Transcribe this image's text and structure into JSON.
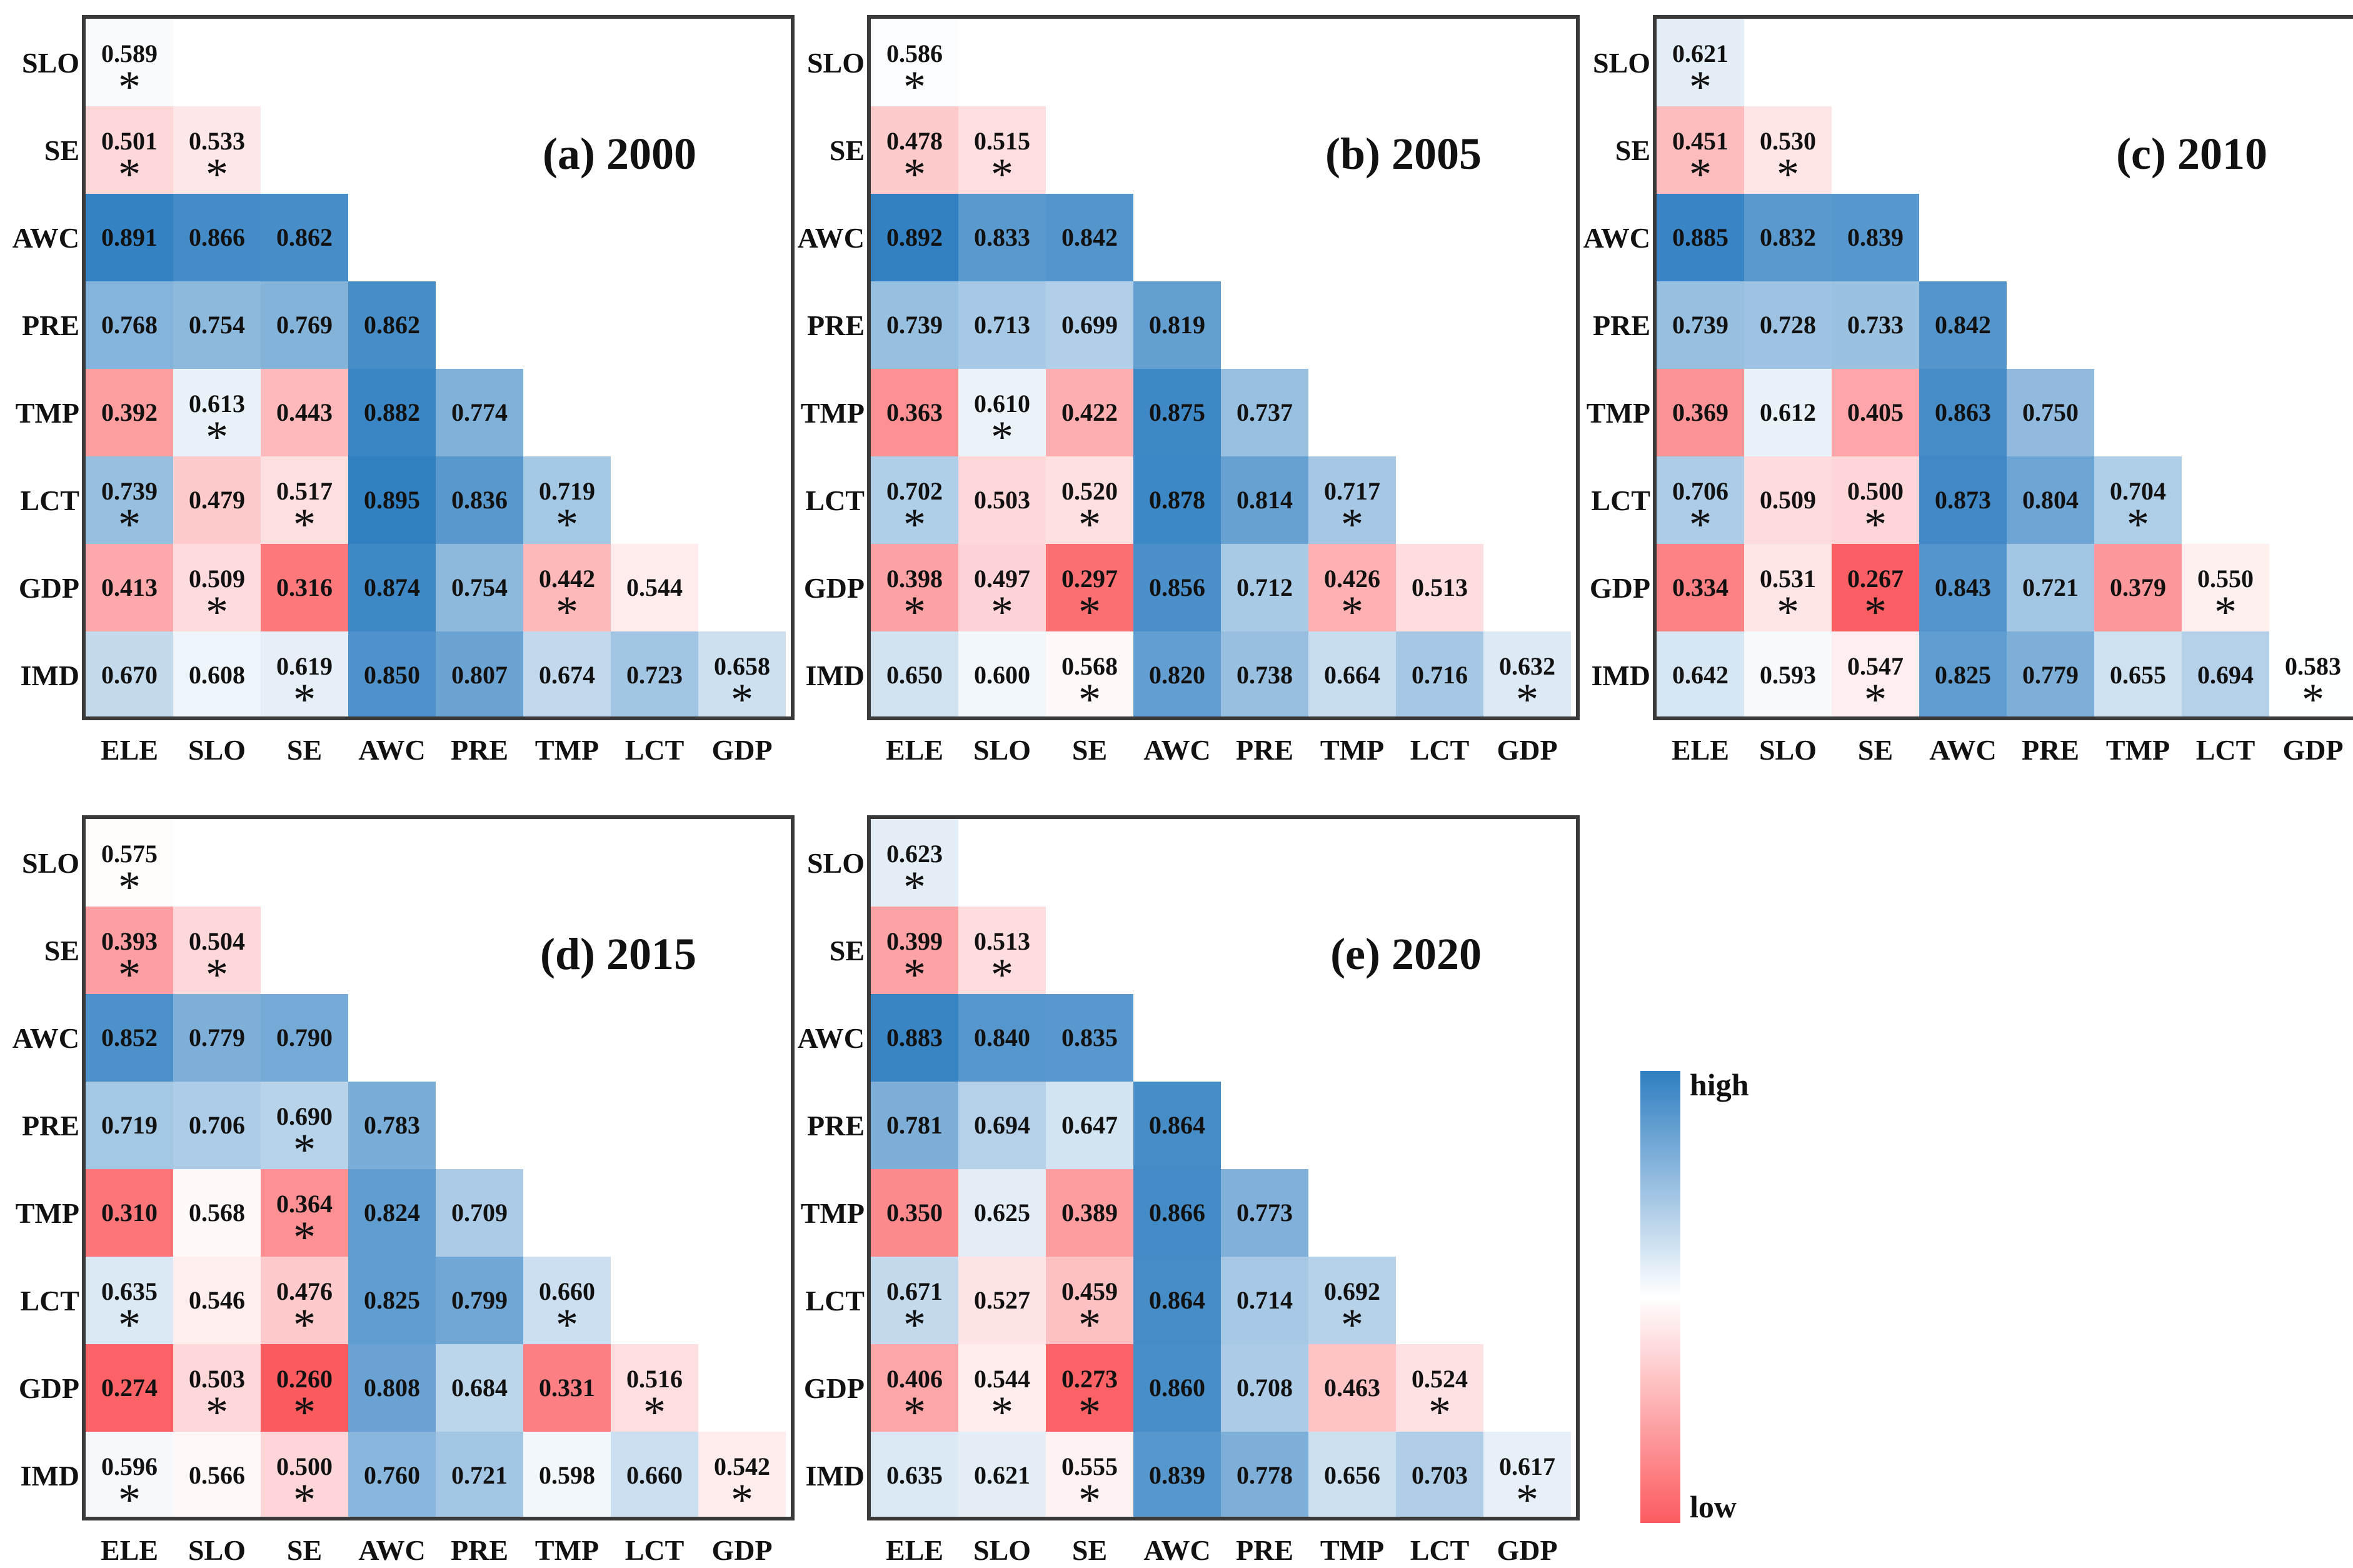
{
  "chart_data": [
    {
      "type": "heatmap",
      "title": "(a) 2000",
      "rows": [
        "SLO",
        "SE",
        "AWC",
        "PRE",
        "TMP",
        "LCT",
        "GDP",
        "IMD"
      ],
      "cols": [
        "ELE",
        "SLO",
        "SE",
        "AWC",
        "PRE",
        "TMP",
        "LCT",
        "GDP"
      ],
      "values": [
        [
          "0.589"
        ],
        [
          "0.501",
          "0.533"
        ],
        [
          "0.891",
          "0.866",
          "0.862"
        ],
        [
          "0.768",
          "0.754",
          "0.769",
          "0.862"
        ],
        [
          "0.392",
          "0.613",
          "0.443",
          "0.882",
          "0.774"
        ],
        [
          "0.739",
          "0.479",
          "0.517",
          "0.895",
          "0.836",
          "0.719"
        ],
        [
          "0.413",
          "0.509",
          "0.316",
          "0.874",
          "0.754",
          "0.442",
          "0.544"
        ],
        [
          "0.670",
          "0.608",
          "0.619",
          "0.850",
          "0.807",
          "0.674",
          "0.723",
          "0.658"
        ]
      ],
      "significant": [
        [
          1
        ],
        [
          1,
          1
        ],
        [
          0,
          0,
          0
        ],
        [
          0,
          0,
          0,
          0
        ],
        [
          0,
          1,
          0,
          0,
          0
        ],
        [
          1,
          0,
          1,
          0,
          0,
          1
        ],
        [
          0,
          1,
          0,
          0,
          0,
          1,
          0
        ],
        [
          0,
          0,
          1,
          0,
          0,
          0,
          0,
          1
        ]
      ]
    },
    {
      "type": "heatmap",
      "title": "(b) 2005",
      "rows": [
        "SLO",
        "SE",
        "AWC",
        "PRE",
        "TMP",
        "LCT",
        "GDP",
        "IMD"
      ],
      "cols": [
        "ELE",
        "SLO",
        "SE",
        "AWC",
        "PRE",
        "TMP",
        "LCT",
        "GDP"
      ],
      "values": [
        [
          "0.586"
        ],
        [
          "0.478",
          "0.515"
        ],
        [
          "0.892",
          "0.833",
          "0.842"
        ],
        [
          "0.739",
          "0.713",
          "0.699",
          "0.819"
        ],
        [
          "0.363",
          "0.610",
          "0.422",
          "0.875",
          "0.737"
        ],
        [
          "0.702",
          "0.503",
          "0.520",
          "0.878",
          "0.814",
          "0.717"
        ],
        [
          "0.398",
          "0.497",
          "0.297",
          "0.856",
          "0.712",
          "0.426",
          "0.513"
        ],
        [
          "0.650",
          "0.600",
          "0.568",
          "0.820",
          "0.738",
          "0.664",
          "0.716",
          "0.632"
        ]
      ],
      "significant": [
        [
          1
        ],
        [
          1,
          1
        ],
        [
          0,
          0,
          0
        ],
        [
          0,
          0,
          0,
          0
        ],
        [
          0,
          1,
          0,
          0,
          0
        ],
        [
          1,
          0,
          1,
          0,
          0,
          1
        ],
        [
          1,
          1,
          1,
          0,
          0,
          1,
          0
        ],
        [
          0,
          0,
          1,
          0,
          0,
          0,
          0,
          1
        ]
      ]
    },
    {
      "type": "heatmap",
      "title": "(c) 2010",
      "rows": [
        "SLO",
        "SE",
        "AWC",
        "PRE",
        "TMP",
        "LCT",
        "GDP",
        "IMD"
      ],
      "cols": [
        "ELE",
        "SLO",
        "SE",
        "AWC",
        "PRE",
        "TMP",
        "LCT",
        "GDP"
      ],
      "values": [
        [
          "0.621"
        ],
        [
          "0.451",
          "0.530"
        ],
        [
          "0.885",
          "0.832",
          "0.839"
        ],
        [
          "0.739",
          "0.728",
          "0.733",
          "0.842"
        ],
        [
          "0.369",
          "0.612",
          "0.405",
          "0.863",
          "0.750"
        ],
        [
          "0.706",
          "0.509",
          "0.500",
          "0.873",
          "0.804",
          "0.704"
        ],
        [
          "0.334",
          "0.531",
          "0.267",
          "0.843",
          "0.721",
          "0.379",
          "0.550"
        ],
        [
          "0.642",
          "0.593",
          "0.547",
          "0.825",
          "0.779",
          "0.655",
          "0.694",
          "0.583"
        ]
      ],
      "significant": [
        [
          1
        ],
        [
          1,
          1
        ],
        [
          0,
          0,
          0
        ],
        [
          0,
          0,
          0,
          0
        ],
        [
          0,
          0,
          0,
          0,
          0
        ],
        [
          1,
          0,
          1,
          0,
          0,
          1
        ],
        [
          0,
          1,
          1,
          0,
          0,
          0,
          1
        ],
        [
          0,
          0,
          1,
          0,
          0,
          0,
          0,
          1
        ]
      ]
    },
    {
      "type": "heatmap",
      "title": "(d) 2015",
      "rows": [
        "SLO",
        "SE",
        "AWC",
        "PRE",
        "TMP",
        "LCT",
        "GDP",
        "IMD"
      ],
      "cols": [
        "ELE",
        "SLO",
        "SE",
        "AWC",
        "PRE",
        "TMP",
        "LCT",
        "GDP"
      ],
      "values": [
        [
          "0.575"
        ],
        [
          "0.393",
          "0.504"
        ],
        [
          "0.852",
          "0.779",
          "0.790"
        ],
        [
          "0.719",
          "0.706",
          "0.690",
          "0.783"
        ],
        [
          "0.310",
          "0.568",
          "0.364",
          "0.824",
          "0.709"
        ],
        [
          "0.635",
          "0.546",
          "0.476",
          "0.825",
          "0.799",
          "0.660"
        ],
        [
          "0.274",
          "0.503",
          "0.260",
          "0.808",
          "0.684",
          "0.331",
          "0.516"
        ],
        [
          "0.596",
          "0.566",
          "0.500",
          "0.760",
          "0.721",
          "0.598",
          "0.660",
          "0.542"
        ]
      ],
      "significant": [
        [
          1
        ],
        [
          1,
          1
        ],
        [
          0,
          0,
          0
        ],
        [
          0,
          0,
          1,
          0
        ],
        [
          0,
          0,
          1,
          0,
          0
        ],
        [
          1,
          0,
          1,
          0,
          0,
          1
        ],
        [
          0,
          1,
          1,
          0,
          0,
          0,
          1
        ],
        [
          1,
          0,
          1,
          0,
          0,
          0,
          0,
          1
        ]
      ]
    },
    {
      "type": "heatmap",
      "title": "(e) 2020",
      "rows": [
        "SLO",
        "SE",
        "AWC",
        "PRE",
        "TMP",
        "LCT",
        "GDP",
        "IMD"
      ],
      "cols": [
        "ELE",
        "SLO",
        "SE",
        "AWC",
        "PRE",
        "TMP",
        "LCT",
        "GDP"
      ],
      "values": [
        [
          "0.623"
        ],
        [
          "0.399",
          "0.513"
        ],
        [
          "0.883",
          "0.840",
          "0.835"
        ],
        [
          "0.781",
          "0.694",
          "0.647",
          "0.864"
        ],
        [
          "0.350",
          "0.625",
          "0.389",
          "0.866",
          "0.773"
        ],
        [
          "0.671",
          "0.527",
          "0.459",
          "0.864",
          "0.714",
          "0.692"
        ],
        [
          "0.406",
          "0.544",
          "0.273",
          "0.860",
          "0.708",
          "0.463",
          "0.524"
        ],
        [
          "0.635",
          "0.621",
          "0.555",
          "0.839",
          "0.778",
          "0.656",
          "0.703",
          "0.617"
        ]
      ],
      "significant": [
        [
          1
        ],
        [
          1,
          1
        ],
        [
          0,
          0,
          0
        ],
        [
          0,
          0,
          0,
          0
        ],
        [
          0,
          0,
          0,
          0,
          0
        ],
        [
          1,
          0,
          1,
          0,
          0,
          1
        ],
        [
          1,
          1,
          1,
          0,
          0,
          0,
          1
        ],
        [
          0,
          0,
          1,
          0,
          0,
          0,
          0,
          1
        ]
      ]
    }
  ],
  "legend": {
    "high_label": "high",
    "low_label": "low",
    "star_symbol": "*",
    "colors": {
      "high": "#2e7ec1",
      "mid": "#ffffff",
      "low": "#fb5b5f"
    }
  }
}
